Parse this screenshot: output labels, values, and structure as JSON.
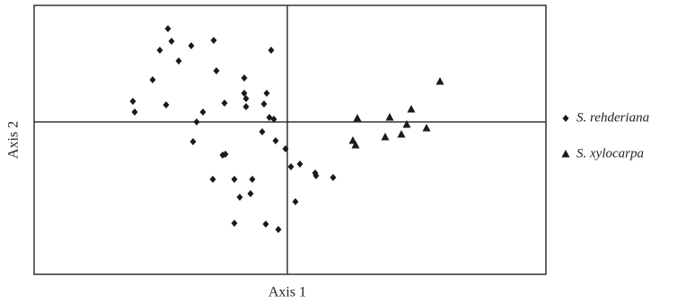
{
  "chart_data": {
    "type": "scatter",
    "x_label": "Axis 1",
    "y_label": "Axis 2",
    "xlim": [
      -2.82,
      2.88
    ],
    "ylim": [
      -1.7,
      1.3
    ],
    "legend": "right",
    "series": [
      {
        "name": "S. rehderiana",
        "color": "#1a1a1a",
        "marker": "diamond",
        "x": [
          -1.33,
          -1.29,
          -1.42,
          -1.07,
          -0.82,
          -0.18,
          -1.21,
          -0.79,
          -1.5,
          -0.48,
          -1.72,
          -1.7,
          -1.35,
          -0.48,
          -0.46,
          -0.7,
          -0.46,
          -0.23,
          -0.26,
          -0.94,
          -1.01,
          -0.2,
          -0.15,
          -0.28,
          -1.05,
          -0.13,
          -0.69,
          -0.72,
          -0.02,
          0.14,
          0.04,
          0.31,
          0.32,
          0.51,
          -0.83,
          -0.59,
          -0.39,
          -0.41,
          -0.53,
          0.09,
          -0.59,
          -0.24,
          -0.1
        ],
        "values": [
          1.04,
          0.9,
          0.8,
          0.85,
          0.91,
          0.8,
          0.68,
          0.57,
          0.47,
          0.49,
          0.23,
          0.11,
          0.19,
          0.32,
          0.26,
          0.21,
          0.17,
          0.32,
          0.2,
          0.11,
          0.0,
          0.05,
          0.03,
          -0.11,
          -0.22,
          -0.21,
          -0.36,
          -0.37,
          -0.3,
          -0.47,
          -0.5,
          -0.57,
          -0.6,
          -0.62,
          -0.64,
          -0.64,
          -0.64,
          -0.8,
          -0.84,
          -0.89,
          -1.13,
          -1.14,
          -1.2
        ]
      },
      {
        "name": "S. xylocarpa",
        "color": "#1a1a1a",
        "marker": "triangle",
        "x": [
          1.7,
          1.38,
          0.78,
          1.14,
          1.33,
          1.55,
          0.73,
          0.76,
          1.09,
          1.27
        ],
        "values": [
          0.45,
          0.14,
          0.04,
          0.05,
          -0.03,
          -0.07,
          -0.21,
          -0.26,
          -0.17,
          -0.14
        ]
      }
    ]
  }
}
